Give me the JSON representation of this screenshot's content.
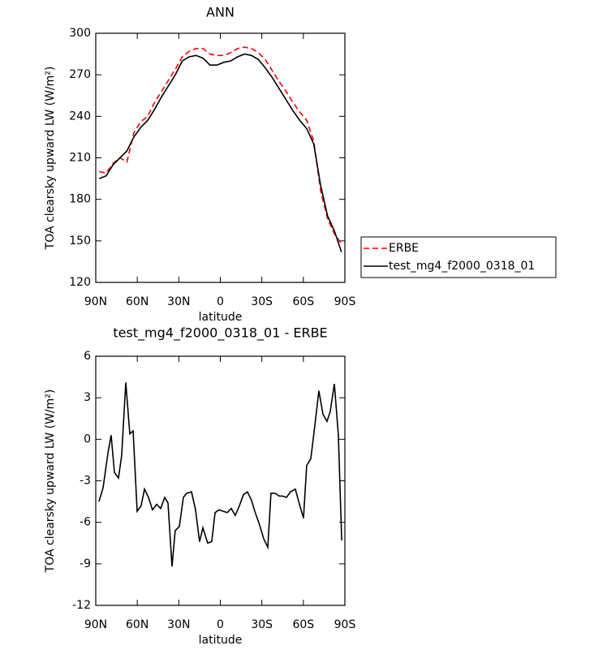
{
  "chart_data": [
    {
      "type": "line",
      "title": "ANN",
      "xlabel": "latitude",
      "ylabel": "TOA clearsky upward LW (W/m²)",
      "x": [
        87.5,
        82.5,
        77.5,
        72.5,
        67.5,
        62.5,
        57.5,
        52.5,
        47.5,
        42.5,
        37.5,
        32.5,
        27.5,
        22.5,
        17.5,
        12.5,
        7.5,
        2.5,
        -2.5,
        -7.5,
        -12.5,
        -17.5,
        -22.5,
        -27.5,
        -32.5,
        -37.5,
        -42.5,
        -47.5,
        -52.5,
        -57.5,
        -62.5,
        -67.5,
        -72.5,
        -77.5,
        -82.5,
        -87.5
      ],
      "series": [
        {
          "name": "ERBE",
          "color": "#ff0000",
          "dashed": true,
          "values": [
            200,
            199,
            206,
            210,
            207,
            228,
            236,
            240,
            250,
            258,
            266,
            274,
            283,
            287,
            289,
            289,
            285,
            284,
            284,
            286,
            289,
            290,
            289,
            286,
            281,
            273,
            265,
            258,
            250,
            243,
            237,
            222,
            186,
            166,
            155,
            148
          ]
        },
        {
          "name": "test_mg4_f2000_0318_01",
          "color": "#000000",
          "dashed": false,
          "values": [
            195,
            197,
            205,
            210,
            215,
            225,
            232,
            237,
            245,
            254,
            262,
            270,
            280,
            283,
            284,
            282,
            277,
            277,
            279,
            280,
            283,
            285,
            284,
            281,
            275,
            268,
            260,
            252,
            244,
            237,
            231,
            220,
            190,
            168,
            157,
            142
          ]
        }
      ],
      "xlim": [
        90,
        -90
      ],
      "xticks": [
        {
          "value": 90,
          "label": "90N"
        },
        {
          "value": 60,
          "label": "60N"
        },
        {
          "value": 30,
          "label": "30N"
        },
        0,
        {
          "value": -30,
          "label": "30S"
        },
        {
          "value": -60,
          "label": "60S"
        },
        {
          "value": -90,
          "label": "90S"
        }
      ],
      "ylim": [
        120,
        300
      ],
      "yticks": [
        120,
        150,
        180,
        210,
        240,
        270,
        300
      ],
      "legend": "right"
    },
    {
      "type": "line",
      "title": "test_mg4_f2000_0318_01 - ERBE",
      "xlabel": "latitude",
      "ylabel": "TOA clearsky upward LW (W/m²)",
      "x": [
        87.7,
        84.7,
        81.2,
        78.9,
        76.5,
        73.6,
        71.3,
        68.3,
        65.4,
        63.0,
        60.1,
        57.2,
        54.8,
        51.9,
        49.0,
        46.0,
        43.1,
        40.2,
        37.8,
        34.9,
        32.6,
        29.6,
        26.7,
        24.3,
        20.8,
        17.9,
        15.0,
        12.6,
        9.1,
        6.2,
        3.8,
        0.9,
        -2.1,
        -5.0,
        -7.9,
        -10.8,
        -13.8,
        -16.7,
        -19.6,
        -22.5,
        -24.9,
        -28.4,
        -31.4,
        -34.3,
        -36.6,
        -39.6,
        -42.5,
        -44.8,
        -47.8,
        -50.7,
        -54.2,
        -57.2,
        -60.1,
        -62.4,
        -65.4,
        -68.3,
        -71.2,
        -74.2,
        -77.1,
        -79.4,
        -82.4,
        -85.3,
        -87.7
      ],
      "values": [
        -4.5,
        -3.5,
        -1,
        0.3,
        -2.4,
        -2.8,
        -1.2,
        4.1,
        0.4,
        0.6,
        -5.2,
        -4.8,
        -3.6,
        -4.2,
        -5.1,
        -4.7,
        -5,
        -4.2,
        -4.6,
        -9.2,
        -6.6,
        -6.3,
        -4.2,
        -3.9,
        -3.8,
        -5.1,
        -7.4,
        -6.4,
        -7.5,
        -7.4,
        -5.3,
        -5.1,
        -5.2,
        -5.3,
        -5,
        -5.5,
        -4.8,
        -4,
        -3.8,
        -4.4,
        -5.2,
        -6.2,
        -7.2,
        -7.8,
        -3.9,
        -3.9,
        -4.1,
        -4.1,
        -4.2,
        -3.8,
        -3.6,
        -4.7,
        -5.7,
        -1.9,
        -1.4,
        1,
        3.5,
        1.8,
        1.3,
        2,
        4,
        0.3,
        -7.3
      ],
      "color": "#000000",
      "xlim": [
        90,
        -90
      ],
      "xticks": [
        {
          "value": 90,
          "label": "90N"
        },
        {
          "value": 60,
          "label": "60N"
        },
        {
          "value": 30,
          "label": "30N"
        },
        0,
        {
          "value": -30,
          "label": "30S"
        },
        {
          "value": -60,
          "label": "60S"
        },
        {
          "value": -90,
          "label": "90S"
        }
      ],
      "ylim": [
        -12,
        6
      ],
      "yticks": [
        -12,
        -9,
        -6,
        -3,
        0,
        3,
        6
      ]
    }
  ]
}
